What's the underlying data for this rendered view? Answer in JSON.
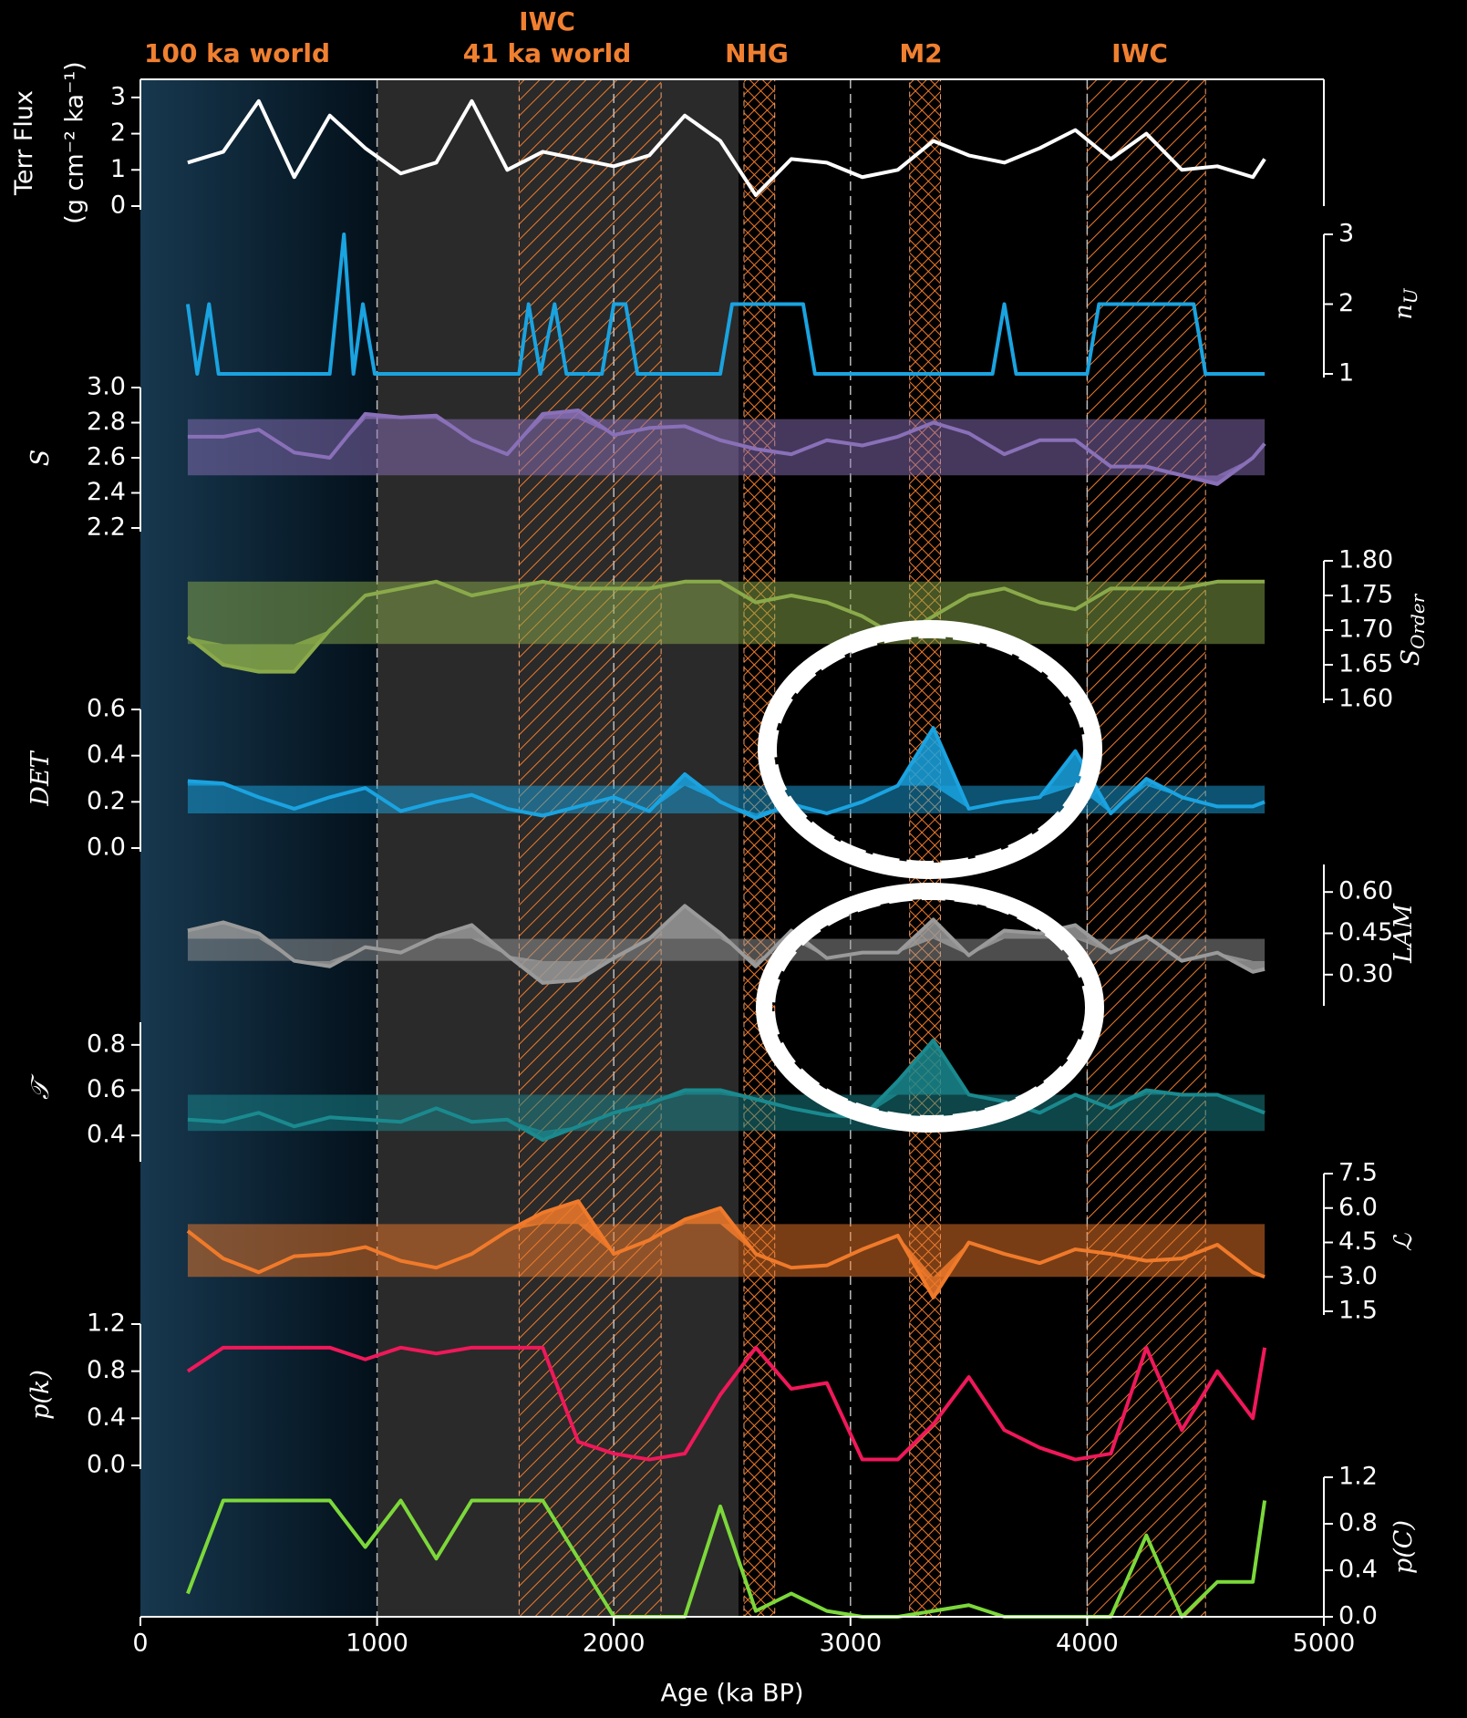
{
  "chart_data": [
    {
      "type": "line",
      "ylabel": "Terr Flux",
      "ylabel_units": "(g cm⁻² ka⁻¹)",
      "color": "#ffffff",
      "annotations": [
        "100 ka world",
        "41 ka world",
        "IWC",
        "NHG",
        "M2",
        "IWC"
      ],
      "spans": [
        [
          1600,
          2200
        ],
        [
          2550,
          2680
        ],
        [
          3250,
          3380
        ],
        [
          4000,
          4500
        ]
      ],
      "vlines": [
        1000,
        2000,
        3000,
        4000
      ],
      "x": [
        200,
        350,
        500,
        650,
        800,
        950,
        1100,
        1250,
        1400,
        1550,
        1700,
        1850,
        2000,
        2150,
        2300,
        2450,
        2600,
        2750,
        2900,
        3050,
        3200,
        3350,
        3500,
        3650,
        3800,
        3950,
        4100,
        4250,
        4400,
        4550,
        4700,
        4750
      ],
      "values": [
        1.2,
        1.5,
        2.9,
        0.8,
        2.5,
        1.6,
        0.9,
        1.2,
        2.9,
        1.0,
        1.5,
        1.3,
        1.1,
        1.4,
        2.5,
        1.8,
        0.3,
        1.3,
        1.2,
        0.8,
        1.0,
        1.8,
        1.4,
        1.2,
        1.6,
        2.1,
        1.3,
        2.0,
        1.0,
        1.1,
        0.8,
        1.3
      ],
      "ylim": [
        0,
        3.5
      ],
      "yticks": [
        0,
        1,
        2,
        3
      ]
    },
    {
      "type": "line",
      "ylabel": "n",
      "ylabel_sub": "U",
      "color": "#1aa3e0",
      "x": [
        200,
        240,
        290,
        330,
        800,
        860,
        900,
        940,
        990,
        1600,
        1640,
        1690,
        1750,
        1800,
        1950,
        2000,
        2050,
        2100,
        2450,
        2500,
        2800,
        2850,
        3600,
        3650,
        3700,
        4000,
        4050,
        4450,
        4500,
        4750
      ],
      "values": [
        2,
        1,
        2,
        1,
        1,
        3,
        1,
        2,
        1,
        1,
        2,
        1,
        2,
        1,
        1,
        2,
        2,
        1,
        1,
        2,
        2,
        1,
        1,
        2,
        1,
        1,
        2,
        2,
        1,
        1
      ],
      "ylim": [
        1,
        3
      ],
      "yticks": [
        1,
        2,
        3
      ]
    },
    {
      "type": "line",
      "ylabel": "S",
      "color": "#8a70b8",
      "band": [
        2.5,
        2.82
      ],
      "x": [
        200,
        350,
        500,
        650,
        800,
        950,
        1100,
        1250,
        1400,
        1550,
        1700,
        1850,
        2000,
        2150,
        2300,
        2450,
        2600,
        2750,
        2900,
        3050,
        3200,
        3350,
        3500,
        3650,
        3800,
        3950,
        4100,
        4250,
        4400,
        4550,
        4700,
        4750
      ],
      "values": [
        2.72,
        2.72,
        2.76,
        2.63,
        2.6,
        2.85,
        2.83,
        2.84,
        2.7,
        2.62,
        2.85,
        2.87,
        2.73,
        2.77,
        2.78,
        2.7,
        2.65,
        2.62,
        2.7,
        2.67,
        2.72,
        2.8,
        2.74,
        2.62,
        2.7,
        2.7,
        2.55,
        2.55,
        2.5,
        2.45,
        2.6,
        2.68
      ],
      "ylim": [
        2.2,
        3.0
      ],
      "yticks": [
        2.2,
        2.4,
        2.6,
        2.8,
        {
          "value": 3.0,
          "label": "3.0"
        }
      ]
    },
    {
      "type": "line",
      "ylabel": "S",
      "ylabel_sub": "Order",
      "color": "#8aaa4a",
      "band": [
        1.68,
        1.77
      ],
      "x": [
        200,
        350,
        500,
        650,
        800,
        950,
        1100,
        1250,
        1400,
        1550,
        1700,
        1850,
        2000,
        2150,
        2300,
        2450,
        2600,
        2750,
        2900,
        3050,
        3200,
        3350,
        3500,
        3650,
        3800,
        3950,
        4100,
        4250,
        4400,
        4550,
        4700,
        4750
      ],
      "values": [
        1.69,
        1.65,
        1.64,
        1.64,
        1.7,
        1.75,
        1.76,
        1.77,
        1.75,
        1.76,
        1.77,
        1.76,
        1.76,
        1.76,
        1.77,
        1.77,
        1.74,
        1.75,
        1.74,
        1.72,
        1.69,
        1.72,
        1.75,
        1.76,
        1.74,
        1.73,
        1.76,
        1.76,
        1.76,
        1.77,
        1.77,
        1.77
      ],
      "ylim": [
        1.6,
        1.8
      ],
      "yticks": [
        {
          "value": 1.6,
          "label": "1.60"
        },
        1.65,
        {
          "value": 1.7,
          "label": "1.70"
        },
        1.75,
        {
          "value": 1.8,
          "label": "1.80"
        }
      ]
    },
    {
      "type": "line",
      "ylabel": "DET",
      "color": "#1aa3e0",
      "band": [
        0.15,
        0.27
      ],
      "x": [
        200,
        350,
        500,
        650,
        800,
        950,
        1100,
        1250,
        1400,
        1550,
        1700,
        1850,
        2000,
        2150,
        2300,
        2450,
        2600,
        2750,
        2900,
        3050,
        3200,
        3350,
        3500,
        3650,
        3800,
        3950,
        4100,
        4250,
        4400,
        4550,
        4700,
        4750
      ],
      "values": [
        0.29,
        0.28,
        0.22,
        0.17,
        0.22,
        0.26,
        0.16,
        0.2,
        0.23,
        0.17,
        0.14,
        0.18,
        0.22,
        0.16,
        0.32,
        0.2,
        0.13,
        0.19,
        0.15,
        0.2,
        0.27,
        0.52,
        0.17,
        0.2,
        0.22,
        0.42,
        0.15,
        0.3,
        0.22,
        0.18,
        0.18,
        0.2
      ],
      "ylim": [
        0,
        0.6
      ],
      "yticks": [
        {
          "value": 0,
          "label": "0.0"
        },
        0.2,
        0.4,
        0.6
      ]
    },
    {
      "type": "line",
      "ylabel": "LAM",
      "color": "#9a9a9a",
      "band": [
        0.35,
        0.43
      ],
      "x": [
        200,
        350,
        500,
        650,
        800,
        950,
        1100,
        1250,
        1400,
        1550,
        1700,
        1850,
        2000,
        2150,
        2300,
        2450,
        2600,
        2750,
        2900,
        3050,
        3200,
        3350,
        3500,
        3650,
        3800,
        3950,
        4100,
        4250,
        4400,
        4550,
        4700,
        4750
      ],
      "values": [
        0.46,
        0.49,
        0.45,
        0.35,
        0.33,
        0.4,
        0.38,
        0.44,
        0.48,
        0.37,
        0.27,
        0.28,
        0.36,
        0.43,
        0.55,
        0.45,
        0.33,
        0.46,
        0.36,
        0.38,
        0.38,
        0.5,
        0.37,
        0.46,
        0.45,
        0.48,
        0.38,
        0.44,
        0.35,
        0.38,
        0.31,
        0.32
      ],
      "ylim": [
        0.2,
        0.7
      ],
      "yticks": [
        {
          "value": 0.3,
          "label": "0.30"
        },
        0.45,
        {
          "value": 0.6,
          "label": "0.60"
        }
      ]
    },
    {
      "type": "line",
      "ylabel": "𝒯",
      "color": "#1a8a8f",
      "band": [
        0.42,
        0.58
      ],
      "x": [
        200,
        350,
        500,
        650,
        800,
        950,
        1100,
        1250,
        1400,
        1550,
        1700,
        1850,
        2000,
        2150,
        2300,
        2450,
        2600,
        2750,
        2900,
        3050,
        3200,
        3350,
        3500,
        3650,
        3800,
        3950,
        4100,
        4250,
        4400,
        4550,
        4700,
        4750
      ],
      "values": [
        0.47,
        0.46,
        0.5,
        0.44,
        0.48,
        0.47,
        0.46,
        0.52,
        0.46,
        0.47,
        0.38,
        0.44,
        0.5,
        0.54,
        0.6,
        0.6,
        0.56,
        0.52,
        0.49,
        0.48,
        0.64,
        0.82,
        0.58,
        0.55,
        0.5,
        0.58,
        0.52,
        0.6,
        0.58,
        0.58,
        0.52,
        0.5
      ],
      "ylim": [
        0.3,
        0.9
      ],
      "yticks": [
        0.4,
        0.6,
        0.8
      ]
    },
    {
      "type": "line",
      "ylabel": "ℒ",
      "color": "#f07a2a",
      "band": [
        3.0,
        5.3
      ],
      "x": [
        200,
        350,
        500,
        650,
        800,
        950,
        1100,
        1250,
        1400,
        1550,
        1700,
        1850,
        2000,
        2150,
        2300,
        2450,
        2600,
        2750,
        2900,
        3050,
        3200,
        3350,
        3500,
        3650,
        3800,
        3950,
        4100,
        4250,
        4400,
        4550,
        4700,
        4750
      ],
      "values": [
        5.0,
        3.8,
        3.2,
        3.9,
        4.0,
        4.3,
        3.7,
        3.4,
        4.0,
        5.0,
        5.8,
        6.3,
        4.0,
        4.6,
        5.5,
        6.0,
        4.0,
        3.4,
        3.5,
        4.2,
        4.8,
        2.1,
        4.5,
        4.0,
        3.6,
        4.2,
        4.0,
        3.7,
        3.8,
        4.4,
        3.2,
        3.0
      ],
      "ylim": [
        1.5,
        7.5
      ],
      "yticks": [
        1.5,
        {
          "value": 3,
          "label": "3.0"
        },
        4.5,
        {
          "value": 6,
          "label": "6.0"
        },
        7.5
      ]
    },
    {
      "type": "line",
      "ylabel": "p(k)",
      "color": "#f0185a",
      "x": [
        200,
        350,
        500,
        650,
        800,
        950,
        1100,
        1250,
        1400,
        1550,
        1700,
        1850,
        2000,
        2150,
        2300,
        2450,
        2600,
        2750,
        2900,
        3050,
        3200,
        3350,
        3500,
        3650,
        3800,
        3950,
        4100,
        4250,
        4400,
        4550,
        4700,
        4750
      ],
      "values": [
        0.8,
        1.0,
        1.0,
        1.0,
        1.0,
        0.9,
        1.0,
        0.95,
        1.0,
        1.0,
        1.0,
        0.2,
        0.1,
        0.05,
        0.1,
        0.6,
        1.0,
        0.65,
        0.7,
        0.05,
        0.05,
        0.35,
        0.75,
        0.3,
        0.15,
        0.05,
        0.1,
        1.0,
        0.3,
        0.8,
        0.4,
        1.0
      ],
      "ylim": [
        0,
        1.2
      ],
      "yticks": [
        {
          "value": 0,
          "label": "0.0"
        },
        0.4,
        0.8,
        1.2
      ]
    },
    {
      "type": "line",
      "ylabel": "p(C)",
      "color": "#7cd83a",
      "x": [
        200,
        350,
        500,
        650,
        800,
        950,
        1100,
        1250,
        1400,
        1550,
        1700,
        1850,
        2000,
        2150,
        2300,
        2450,
        2600,
        2750,
        2900,
        3050,
        3200,
        3350,
        3500,
        3650,
        3800,
        3950,
        4100,
        4250,
        4400,
        4550,
        4700,
        4750
      ],
      "values": [
        0.2,
        1.0,
        1.0,
        1.0,
        1.0,
        0.6,
        1.0,
        0.5,
        1.0,
        1.0,
        1.0,
        0.5,
        0.0,
        0.0,
        0.0,
        0.95,
        0.05,
        0.2,
        0.05,
        0.0,
        0.0,
        0.05,
        0.1,
        0.0,
        0.0,
        0.0,
        0.0,
        0.7,
        0.0,
        0.3,
        0.3,
        1.0
      ],
      "ylim": [
        0,
        1.2
      ],
      "yticks": [
        {
          "value": 0,
          "label": "0.0"
        },
        0.4,
        0.8,
        1.2
      ],
      "xlabel": "Age (ka BP)",
      "xlim": [
        0,
        5000
      ],
      "xticks": [
        0,
        1000,
        2000,
        3000,
        4000,
        5000
      ]
    }
  ]
}
